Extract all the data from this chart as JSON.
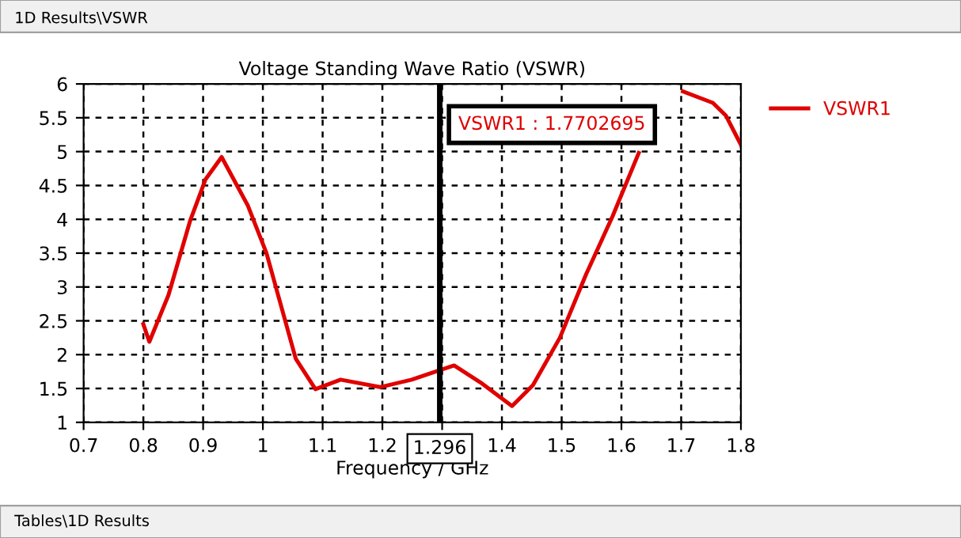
{
  "chart_data": {
    "type": "line",
    "title": "Voltage Standing Wave Ratio (VSWR)",
    "xlabel": "Frequency / GHz",
    "series": [
      {
        "name": "VSWR1",
        "color": "#e00000",
        "x": [
          0.8,
          0.81,
          0.842,
          0.878,
          0.904,
          0.931,
          0.975,
          1.006,
          1.028,
          1.055,
          1.088,
          1.13,
          1.196,
          1.249,
          1.296,
          1.32,
          1.364,
          1.417,
          1.452,
          1.497,
          1.541,
          1.585,
          1.629,
          1.665,
          1.703,
          1.753,
          1.775,
          1.8
        ],
        "values": [
          2.45,
          2.19,
          2.88,
          3.97,
          4.59,
          4.92,
          4.2,
          3.5,
          2.8,
          1.94,
          1.49,
          1.63,
          1.52,
          1.63,
          1.77,
          1.84,
          1.59,
          1.24,
          1.55,
          2.25,
          3.19,
          4.04,
          4.98,
          null,
          5.89,
          5.72,
          5.53,
          5.1
        ]
      }
    ],
    "xlim": [
      0.7,
      1.8
    ],
    "xticks": [
      0.7,
      0.8,
      0.9,
      1,
      1.1,
      1.2,
      {
        "value": 1.3,
        "label": null
      },
      1.4,
      1.5,
      1.6,
      1.7,
      1.8
    ],
    "ylim": [
      1,
      6
    ],
    "yticks": [
      1,
      1.5,
      2,
      2.5,
      3,
      3.5,
      4,
      4.5,
      5,
      5.5,
      6
    ],
    "grid": true,
    "legend": "right",
    "line_style": "solid",
    "marker": "none",
    "ref_lines": [
      {
        "axis": "x",
        "value": 1.296,
        "label": "1.296",
        "color": "#000000"
      }
    ],
    "annotations": [
      "VSWR1 : 1.7702695",
      "1D Results\\VSWR",
      "Tables\\1D Results"
    ]
  }
}
